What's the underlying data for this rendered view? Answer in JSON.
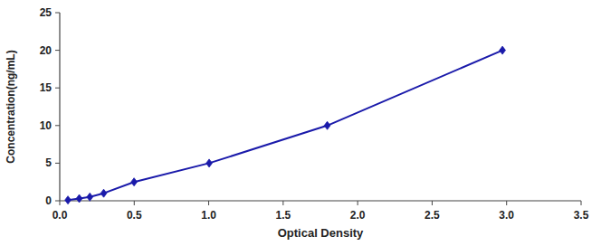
{
  "chart_data": {
    "type": "line",
    "x": [
      0.055,
      0.131,
      0.202,
      0.295,
      0.499,
      1.003,
      1.796,
      2.972
    ],
    "values": [
      0.1,
      0.3,
      0.5,
      1.0,
      2.5,
      5.0,
      10.0,
      20.0
    ],
    "color": "#1a1aaa",
    "marker": "diamond",
    "line_style": "solid",
    "xlabel": "Optical Density",
    "ylabel": "Concentration(ng/mL)",
    "xlim": [
      0,
      3.5
    ],
    "ylim": [
      0,
      25
    ],
    "xticks": [
      {
        "value": 0,
        "label": "0.0"
      },
      0.5,
      {
        "value": 1,
        "label": "1.0"
      },
      1.5,
      {
        "value": 2,
        "label": "2.0"
      },
      2.5,
      {
        "value": 3,
        "label": "3.0"
      },
      3.5
    ],
    "yticks": [
      0,
      5,
      10,
      15,
      20,
      25
    ]
  }
}
